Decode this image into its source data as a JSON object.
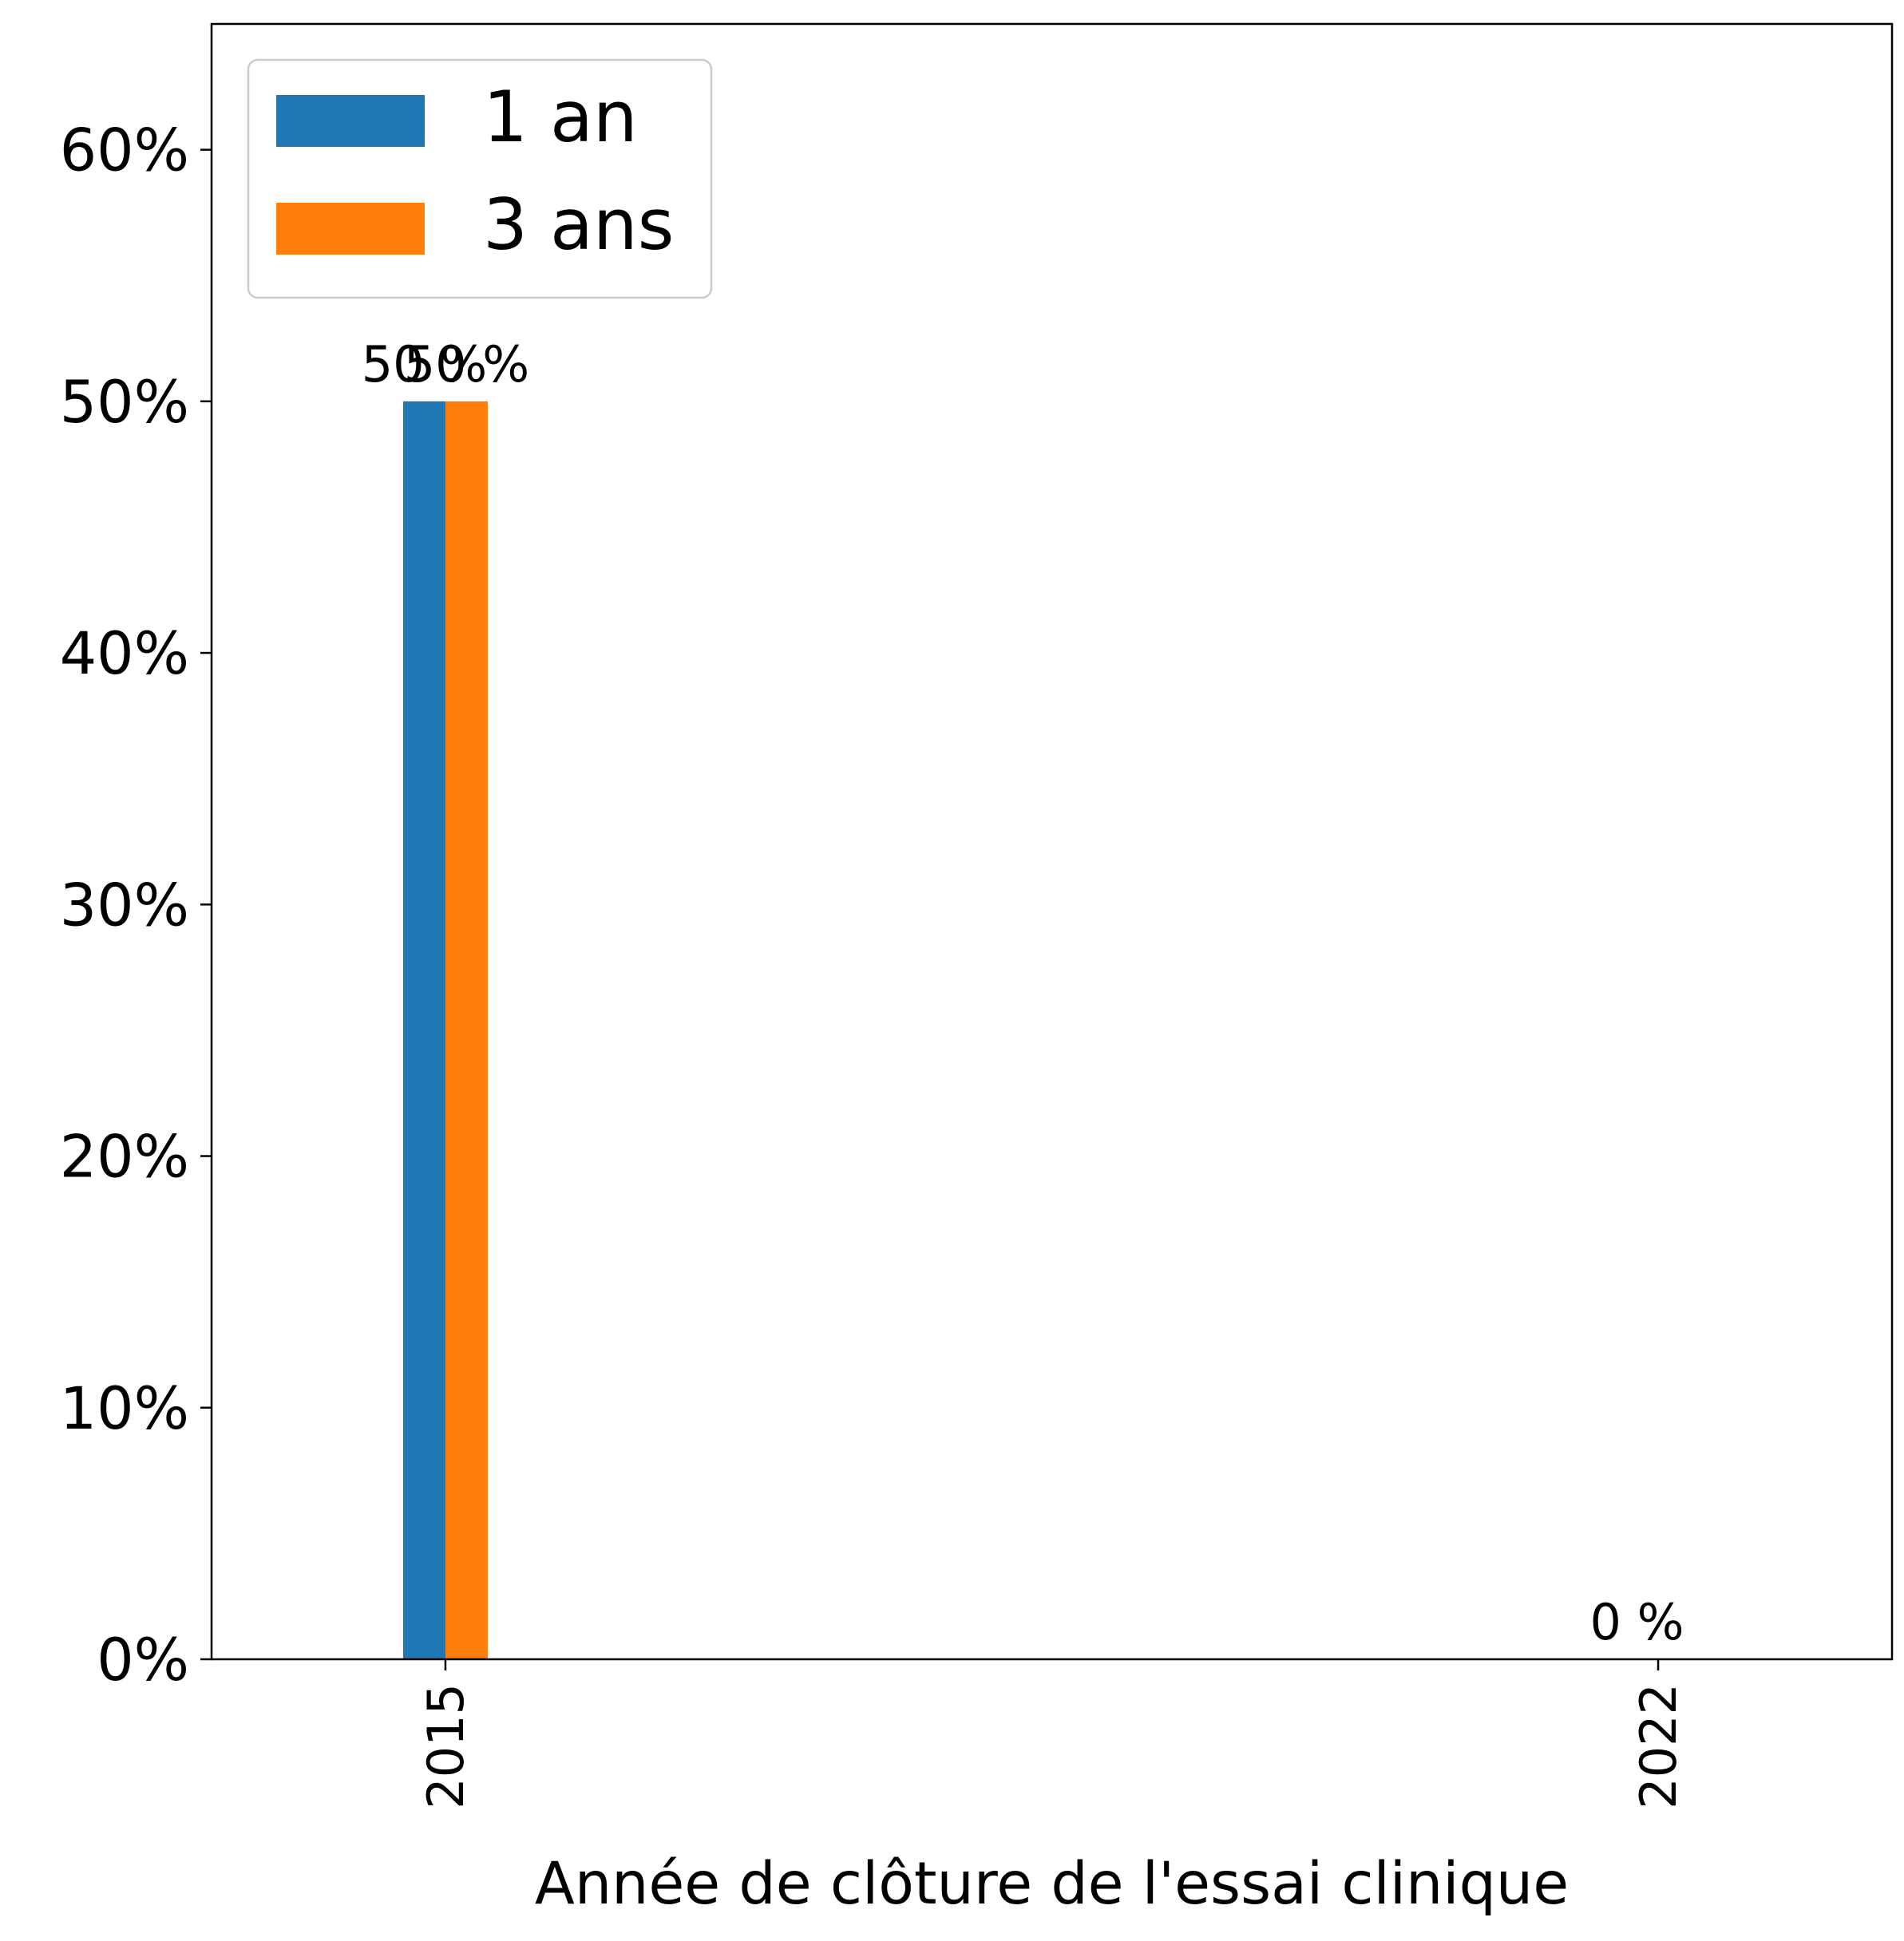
{
  "chart_data": {
    "type": "bar",
    "categories": [
      "2015",
      "2022"
    ],
    "series": [
      {
        "name": "1 an",
        "values": [
          50,
          0
        ],
        "color": "#1f77b4"
      },
      {
        "name": "3 ans",
        "values": [
          50,
          0
        ],
        "color": "#ff7f0e"
      }
    ],
    "data_labels": [
      {
        "category": "2015",
        "series": "1 an",
        "text": "50 %"
      },
      {
        "category": "2015",
        "series": "3 ans",
        "text": "50 %"
      },
      {
        "category": "2022",
        "series": "1 an",
        "text": "0 %"
      }
    ],
    "xlabel": "Année de clôture de l'essai clinique",
    "ylabel": "",
    "ylim": [
      0,
      65
    ],
    "yticks": [
      0,
      10,
      20,
      30,
      40,
      50,
      60
    ],
    "ytick_labels": [
      "0%",
      "10%",
      "20%",
      "30%",
      "40%",
      "50%",
      "60%"
    ],
    "x_domain": [
      2013.65,
      2023.35
    ],
    "grid": false,
    "legend_position": "top-left"
  }
}
